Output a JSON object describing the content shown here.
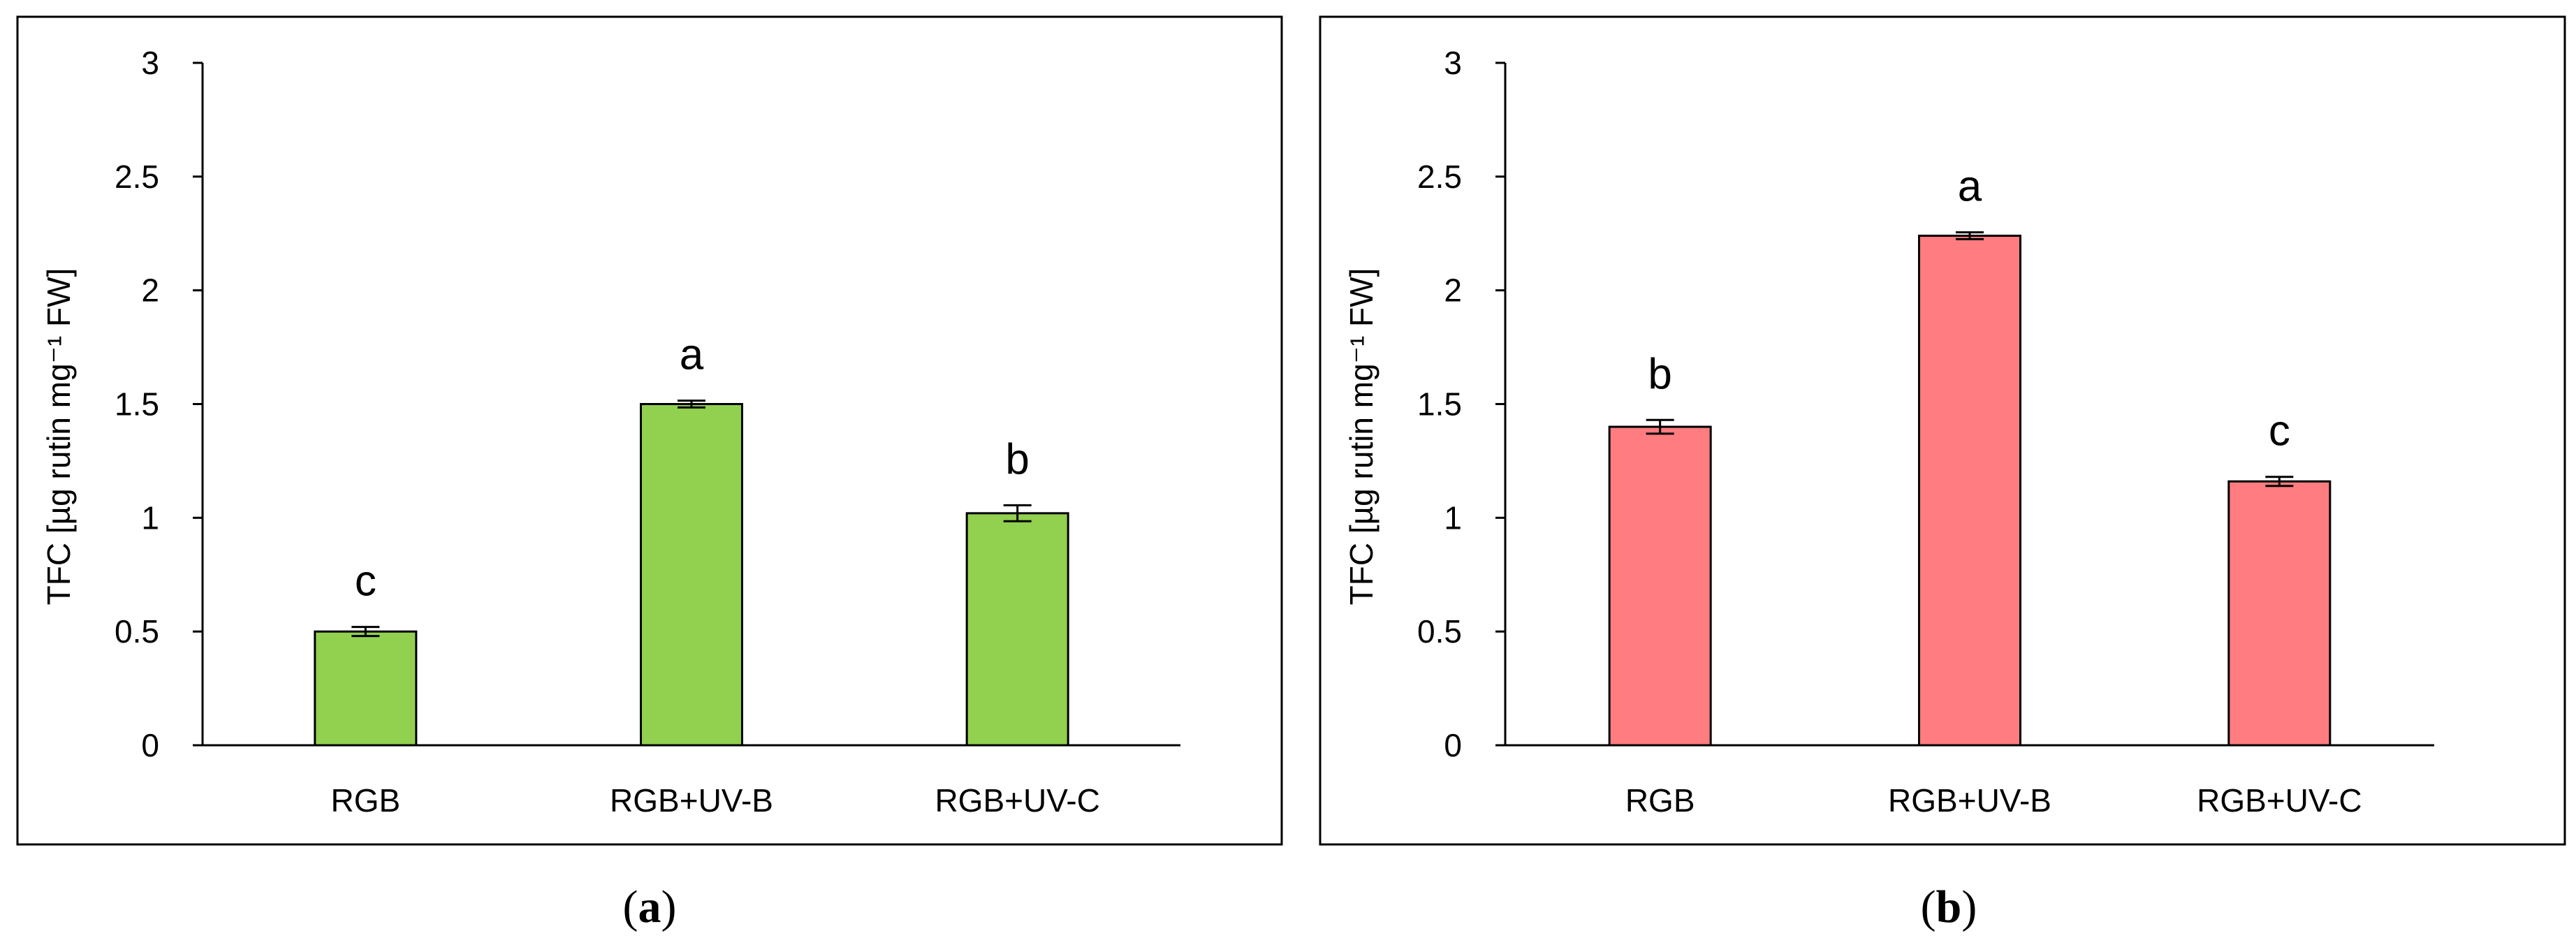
{
  "chart_data": [
    {
      "type": "bar",
      "panel_label": "a",
      "ylabel": "TFC [µg rutin mg⁻¹ FW]",
      "categories": [
        "RGB",
        "RGB+UV-B",
        "RGB+UV-C"
      ],
      "values": [
        0.5,
        1.5,
        1.02
      ],
      "errors": [
        0.02,
        0.015,
        0.035
      ],
      "letters": [
        "c",
        "a",
        "b"
      ],
      "ylim": [
        0,
        3
      ],
      "yticks": [
        0,
        0.5,
        1,
        1.5,
        2,
        2.5,
        3
      ],
      "ytick_labels": [
        "0",
        "0.5",
        "1",
        "1.5",
        "2",
        "2.5",
        "3"
      ],
      "bar_color": "#92d050",
      "grid": false,
      "legend": "none"
    },
    {
      "type": "bar",
      "panel_label": "b",
      "ylabel": "TFC [µg rutin mg⁻¹ FW]",
      "categories": [
        "RGB",
        "RGB+UV-B",
        "RGB+UV-C"
      ],
      "values": [
        1.4,
        2.24,
        1.16
      ],
      "errors": [
        0.03,
        0.015,
        0.02
      ],
      "letters": [
        "b",
        "a",
        "c"
      ],
      "ylim": [
        0,
        3
      ],
      "yticks": [
        0,
        0.5,
        1,
        1.5,
        2,
        2.5,
        3
      ],
      "ytick_labels": [
        "0",
        "0.5",
        "1",
        "1.5",
        "2",
        "2.5",
        "3"
      ],
      "bar_color": "#ff7c80",
      "grid": false,
      "legend": "none"
    }
  ]
}
